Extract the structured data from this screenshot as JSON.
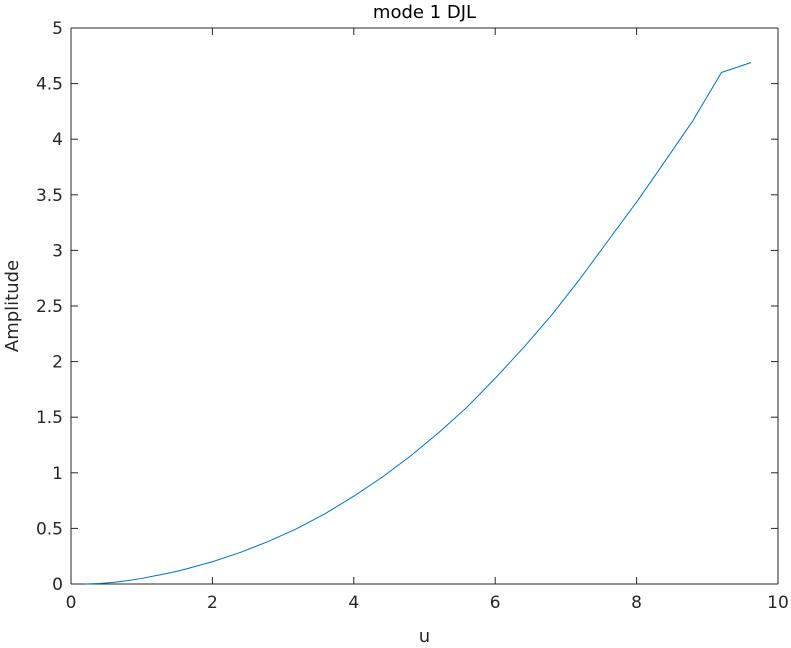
{
  "chart_data": {
    "type": "line",
    "title": "mode 1 DJL",
    "xlabel": "u",
    "ylabel": "Amplitude",
    "xlim": [
      0,
      10
    ],
    "ylim": [
      0,
      5
    ],
    "xticks": [
      0,
      2,
      4,
      6,
      8,
      10
    ],
    "yticks": [
      0,
      0.5,
      1,
      1.5,
      2,
      2.5,
      3,
      3.5,
      4,
      4.5,
      5
    ],
    "xtick_labels": [
      "0",
      "2",
      "4",
      "6",
      "8",
      "10"
    ],
    "ytick_labels": [
      "0",
      "0.5",
      "1",
      "1.5",
      "2",
      "2.5",
      "3",
      "3.5",
      "4",
      "4.5",
      "5"
    ],
    "grid": false,
    "box": true,
    "series": [
      {
        "color": "#0072BD",
        "x": [
          0.2,
          0.4,
          0.6,
          0.8,
          1.0,
          1.2,
          1.4,
          1.6,
          1.8,
          2.0,
          2.4,
          2.8,
          3.2,
          3.6,
          4.0,
          4.4,
          4.8,
          5.2,
          5.6,
          6.0,
          6.4,
          6.8,
          7.2,
          7.6,
          8.0,
          8.4,
          8.8,
          9.2,
          9.62
        ],
        "y": [
          0.0,
          0.005,
          0.015,
          0.03,
          0.05,
          0.075,
          0.1,
          0.13,
          0.165,
          0.2,
          0.285,
          0.385,
          0.5,
          0.635,
          0.79,
          0.96,
          1.15,
          1.36,
          1.59,
          1.85,
          2.125,
          2.42,
          2.745,
          3.09,
          3.435,
          3.8,
          4.17,
          4.6,
          4.69
        ]
      }
    ]
  }
}
